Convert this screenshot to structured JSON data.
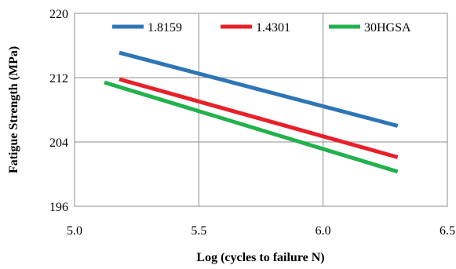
{
  "chart_data": {
    "type": "line",
    "title": "",
    "xlabel": "Log (cycles to failure N)",
    "ylabel": "Fatigue Strength (MPa)",
    "xlim": [
      5.0,
      6.5
    ],
    "ylim": [
      196,
      220
    ],
    "x_ticks": [
      5.0,
      5.5,
      6.0,
      6.5
    ],
    "y_ticks": [
      196,
      204,
      212,
      220
    ],
    "x_tick_labels": [
      "5.0",
      "5.5",
      "6.0",
      "6.5"
    ],
    "y_tick_labels": [
      "196",
      "204",
      "212",
      "220"
    ],
    "grid": "vertical and horizontal at major ticks",
    "legend_position": "top",
    "series": [
      {
        "name": "1.8159",
        "color": "#2e75b6",
        "x": [
          5.18,
          6.3
        ],
        "y": [
          215.1,
          206.0
        ]
      },
      {
        "name": "1.4301",
        "color": "#e8202a",
        "x": [
          5.18,
          6.3
        ],
        "y": [
          211.8,
          202.1
        ]
      },
      {
        "name": "30HGSA",
        "color": "#22b14c",
        "x": [
          5.12,
          6.3
        ],
        "y": [
          211.4,
          200.3
        ]
      }
    ]
  }
}
